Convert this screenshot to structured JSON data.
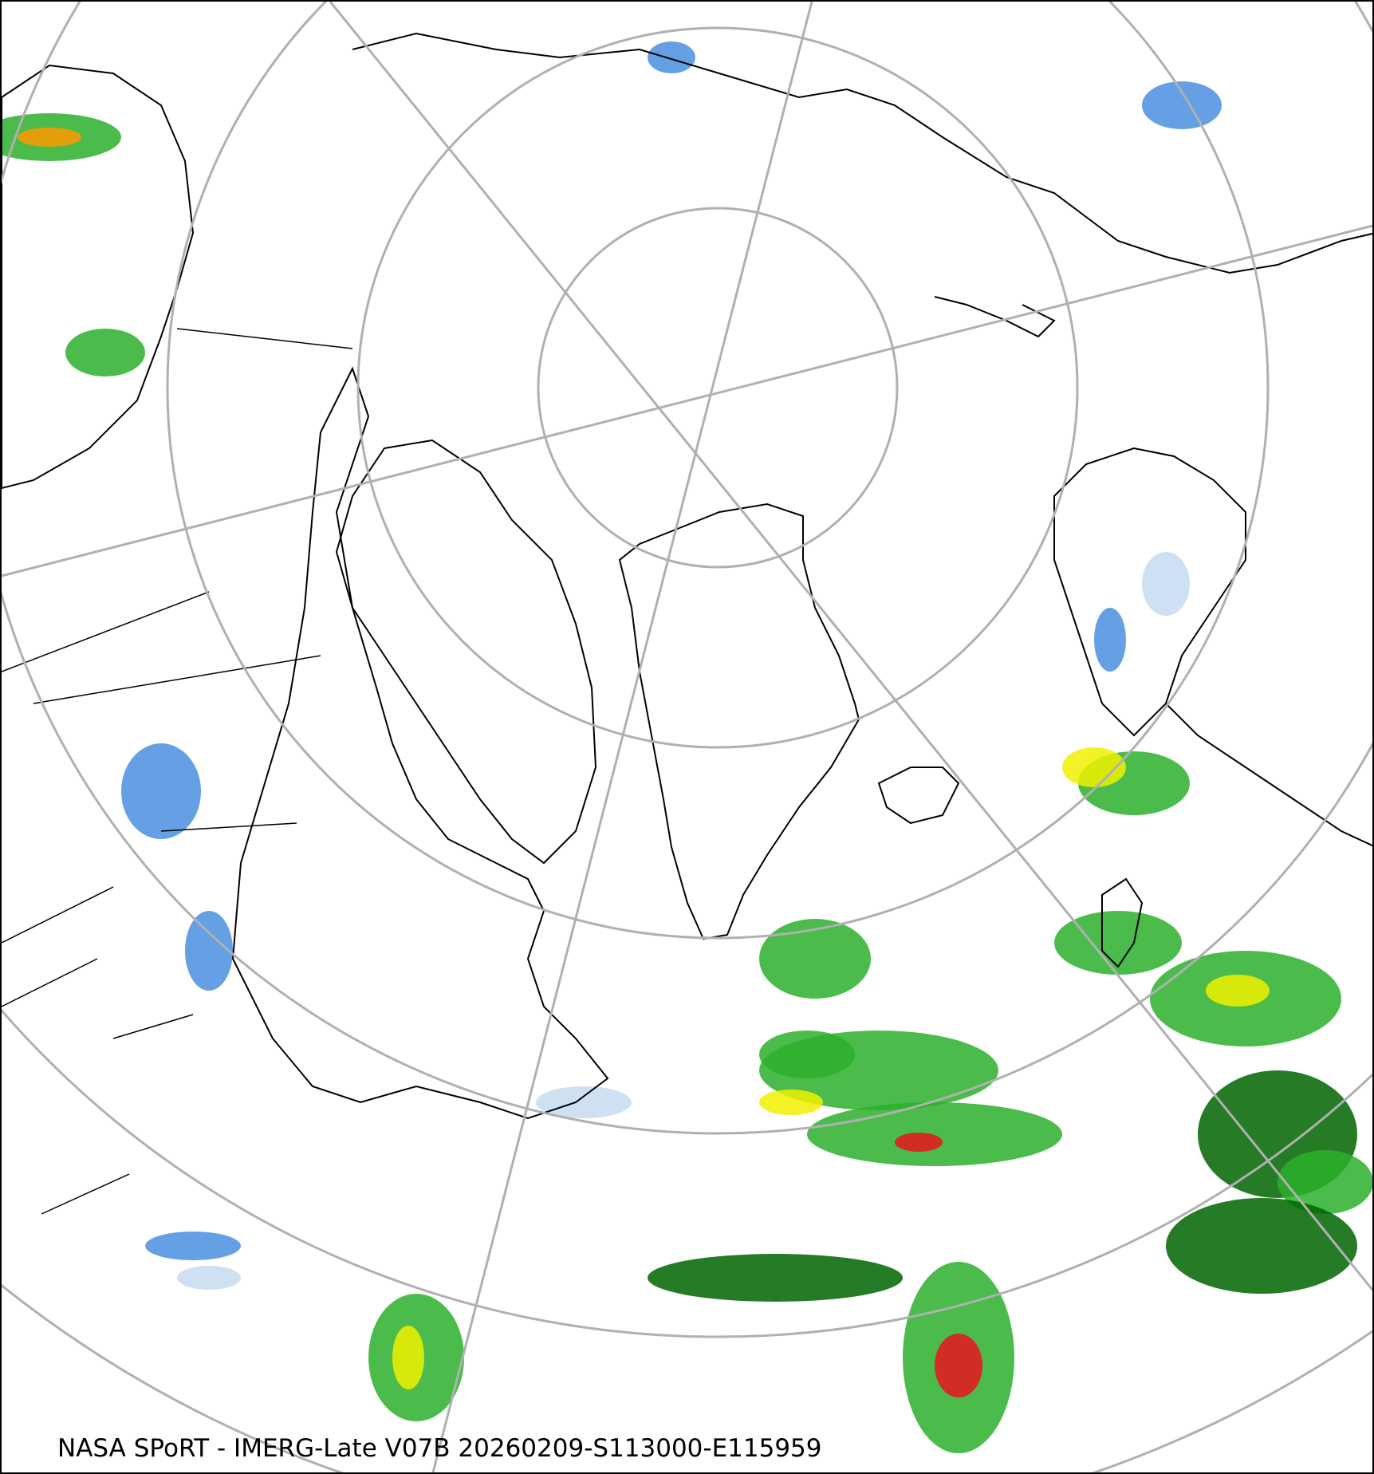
{
  "caption": "NASA SPoRT - IMERG-Late V07B 20260209-S113000-E115959",
  "colors": {
    "graticule": "#b0b0b0",
    "coastline": "#000000",
    "precip_light_blue": "#c6dbef",
    "precip_blue": "#4a8fe0",
    "precip_dark_blue": "#1f5fd0",
    "precip_green_light": "#7cfc00",
    "precip_green": "#2cb02c",
    "precip_dark_green": "#006400",
    "precip_yellow": "#f0f000",
    "precip_orange": "#ff9900",
    "precip_red": "#e8141e"
  },
  "projection": "north-polar-stereographic",
  "map_layers": [
    "coastlines",
    "borders",
    "graticule",
    "precipitation"
  ]
}
